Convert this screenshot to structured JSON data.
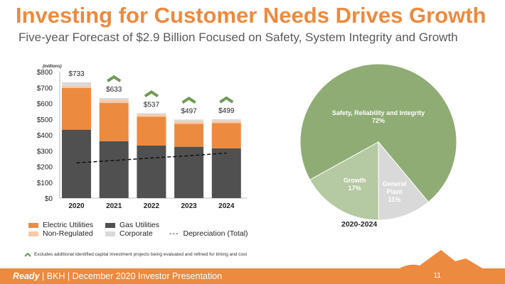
{
  "header": {
    "title": "Investing for Customer Needs Drives Growth",
    "subtitle": "Five-year Forecast of $2.9 Billion Focused on Safety, System Integrity and Growth"
  },
  "chart_data": [
    {
      "type": "bar",
      "stacked": true,
      "unit_label": "(millions)",
      "categories": [
        "2020",
        "2021",
        "2022",
        "2023",
        "2024"
      ],
      "ylim": [
        0,
        800
      ],
      "yticks": [
        "$0",
        "$100",
        "$200",
        "$300",
        "$400",
        "$500",
        "$600",
        "$700",
        "$800"
      ],
      "series": [
        {
          "name": "Gas Utilities",
          "color": "#505050",
          "values": [
            433,
            360,
            333,
            325,
            315
          ]
        },
        {
          "name": "Electric Utilities",
          "color": "#ec8a3f",
          "values": [
            264,
            242,
            182,
            145,
            160
          ]
        },
        {
          "name": "Non-Regulated",
          "color": "#f6c9a8",
          "values": [
            14,
            20,
            15,
            17,
            14
          ]
        },
        {
          "name": "Corporate",
          "color": "#d9d9d9",
          "values": [
            22,
            11,
            7,
            10,
            10
          ]
        }
      ],
      "totals": [
        "$733",
        "$633",
        "$537",
        "$497",
        "$499"
      ],
      "excludes_marker": [
        false,
        true,
        true,
        true,
        true
      ],
      "line": {
        "name": "Depreciation (Total)",
        "style": "dashed",
        "values": [
          223,
          238,
          254,
          268,
          285
        ]
      }
    },
    {
      "type": "pie",
      "title": "2020-2024",
      "slices": [
        {
          "label": "Safety, Reliability and Integrity",
          "value": 72,
          "pct": "72%",
          "color": "#8fac74"
        },
        {
          "label": "General Plant",
          "label_lines": [
            "General",
            "Plant"
          ],
          "value": 11,
          "pct": "11%",
          "color": "#d9d9d9"
        },
        {
          "label": "Growth",
          "value": 17,
          "pct": "17%",
          "color": "#b5c9a2"
        }
      ]
    }
  ],
  "footnote": "Excludes additional identified capital investment projects being evaluated and refined for timing and cost",
  "footer": {
    "brand": "Ready",
    "text": " | BKH | December 2020 Investor Presentation",
    "page": "11"
  },
  "colors": {
    "accent": "#ec8a3f",
    "marker": "#6f9a55"
  }
}
